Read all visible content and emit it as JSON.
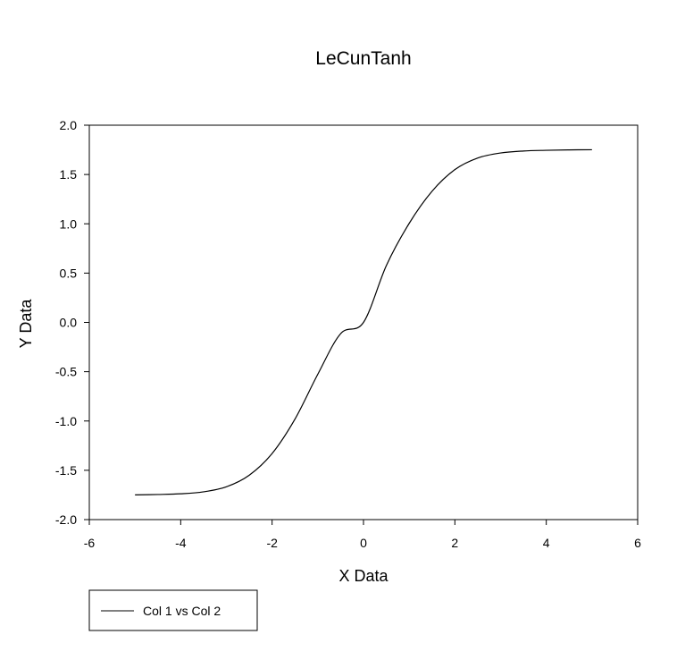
{
  "chart_data": {
    "type": "line",
    "title": "LeCunTanh",
    "xlabel": "X Data",
    "ylabel": "Y Data",
    "xlim": [
      -6,
      6
    ],
    "ylim": [
      -2.0,
      2.0
    ],
    "x_ticks": [
      "-6",
      "-4",
      "-2",
      "0",
      "2",
      "4",
      "6"
    ],
    "y_ticks": [
      "-2.0",
      "-1.5",
      "-1.0",
      "-0.5",
      "0.0",
      "0.5",
      "1.0",
      "1.5",
      "2.0"
    ],
    "grid": false,
    "legend_position": "bottom-left",
    "legend_entries": [
      "Col 1 vs Col 2"
    ],
    "series": [
      {
        "name": "Col 1 vs Col 2",
        "color": "#000000",
        "x": [
          -5.0,
          -4.5,
          -4.0,
          -3.5,
          -3.0,
          -2.5,
          -2.0,
          -1.5,
          -1.0,
          -0.5,
          0.0,
          0.5,
          1.0,
          1.5,
          2.0,
          2.5,
          3.0,
          3.5,
          4.0,
          4.5,
          5.0
        ],
        "y": [
          -1.7496,
          -1.7455,
          -1.7382,
          -1.7183,
          -1.6672,
          -1.5497,
          -1.3299,
          -0.9813,
          -0.5263,
          -0.1142,
          0.0,
          0.5763,
          1.0045,
          1.3299,
          1.5497,
          1.6672,
          1.7183,
          1.7382,
          1.7455,
          1.7496,
          1.7509
        ]
      }
    ]
  }
}
